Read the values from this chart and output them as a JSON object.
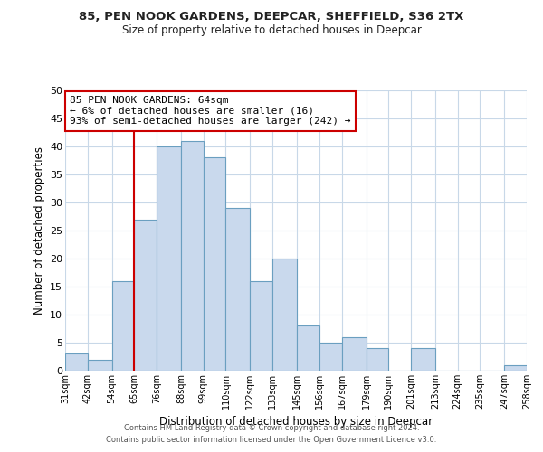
{
  "title": "85, PEN NOOK GARDENS, DEEPCAR, SHEFFIELD, S36 2TX",
  "subtitle": "Size of property relative to detached houses in Deepcar",
  "xlabel": "Distribution of detached houses by size in Deepcar",
  "ylabel": "Number of detached properties",
  "bin_labels": [
    "31sqm",
    "42sqm",
    "54sqm",
    "65sqm",
    "76sqm",
    "88sqm",
    "99sqm",
    "110sqm",
    "122sqm",
    "133sqm",
    "145sqm",
    "156sqm",
    "167sqm",
    "179sqm",
    "190sqm",
    "201sqm",
    "213sqm",
    "224sqm",
    "235sqm",
    "247sqm",
    "258sqm"
  ],
  "bin_edges": [
    31,
    42,
    54,
    65,
    76,
    88,
    99,
    110,
    122,
    133,
    145,
    156,
    167,
    179,
    190,
    201,
    213,
    224,
    235,
    247,
    258
  ],
  "bar_heights": [
    3,
    2,
    16,
    27,
    40,
    41,
    38,
    29,
    16,
    20,
    8,
    5,
    6,
    4,
    0,
    4,
    0,
    0,
    0,
    1
  ],
  "bar_color": "#c9d9ed",
  "bar_edge_color": "#6a9fc0",
  "vline_x": 65,
  "vline_color": "#cc0000",
  "annotation_text": "85 PEN NOOK GARDENS: 64sqm\n← 6% of detached houses are smaller (16)\n93% of semi-detached houses are larger (242) →",
  "annotation_box_color": "#cc0000",
  "ylim": [
    0,
    50
  ],
  "yticks": [
    0,
    5,
    10,
    15,
    20,
    25,
    30,
    35,
    40,
    45,
    50
  ],
  "background_color": "#ffffff",
  "grid_color": "#c8d8e8",
  "footer_line1": "Contains HM Land Registry data © Crown copyright and database right 2024.",
  "footer_line2": "Contains public sector information licensed under the Open Government Licence v3.0."
}
